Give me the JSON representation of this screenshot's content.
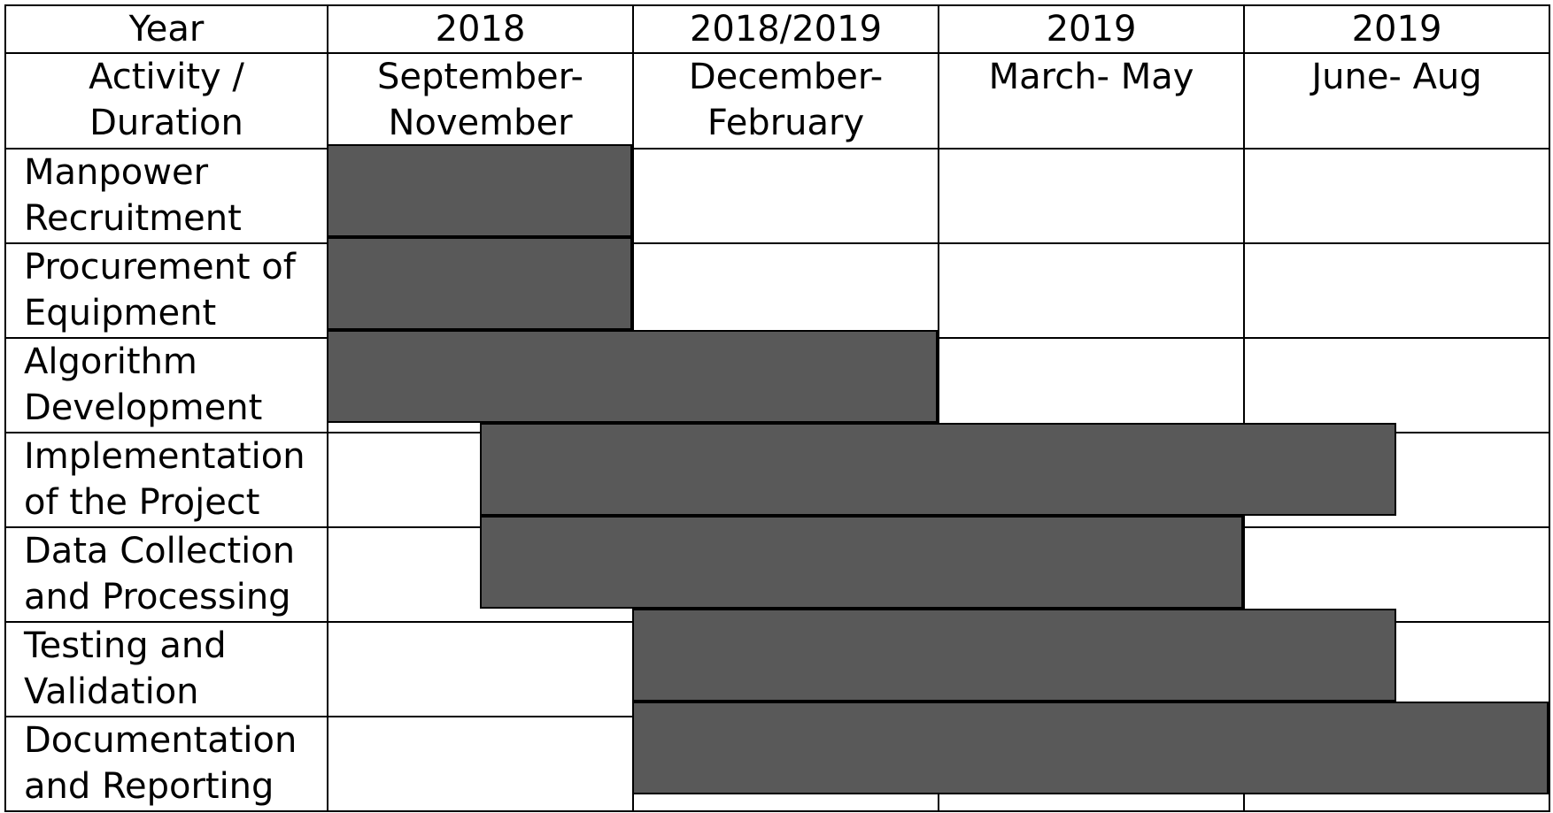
{
  "header": {
    "year_label": "Year",
    "duration_label": "Activity / Duration",
    "columns": [
      {
        "year": "2018",
        "duration": "September-November"
      },
      {
        "year": "2018/2019",
        "duration": "December-February"
      },
      {
        "year": "2019",
        "duration": "March- May"
      },
      {
        "year": "2019",
        "duration": "June- Aug"
      }
    ]
  },
  "activities": [
    {
      "label": "Manpower Recruitment",
      "start": 0,
      "end": 1
    },
    {
      "label": "Procurement of Equipment",
      "start": 0,
      "end": 1
    },
    {
      "label": "Algorithm Development",
      "start": 0,
      "end": 2
    },
    {
      "label": "Implementation of the Project",
      "start": 0.5,
      "end": 3.5
    },
    {
      "label": "Data Collection and Processing",
      "start": 0.5,
      "end": 3
    },
    {
      "label": "Testing and Validation",
      "start": 1,
      "end": 3.5
    },
    {
      "label": "Documentation and Reporting",
      "start": 1,
      "end": 4
    }
  ],
  "colors": {
    "bar_fill": "#595959",
    "grid_line": "#000000",
    "background": "#ffffff"
  }
}
